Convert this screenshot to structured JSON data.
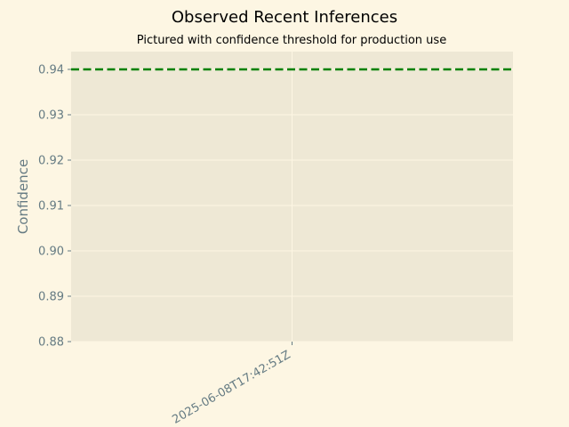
{
  "chart_data": {
    "type": "line",
    "title": "Observed Recent Inferences",
    "subtitle": "Pictured with confidence threshold for production use",
    "xlabel": "",
    "ylabel": "Confidence",
    "x_categories": [
      "2025-06-08T17:42:51Z"
    ],
    "series": [],
    "threshold": {
      "value": 0.94,
      "color": "#008000",
      "style": "dashed"
    },
    "ylim": [
      0.88,
      0.94
    ],
    "yticks": [
      "0.88",
      "0.89",
      "0.90",
      "0.91",
      "0.92",
      "0.93",
      "0.94"
    ],
    "grid": true,
    "legend": "none"
  },
  "colors": {
    "background": "#fdf6e3",
    "plot_background": "#eee8d5",
    "grid": "#fdf6e3",
    "tick_text": "#657b83"
  }
}
